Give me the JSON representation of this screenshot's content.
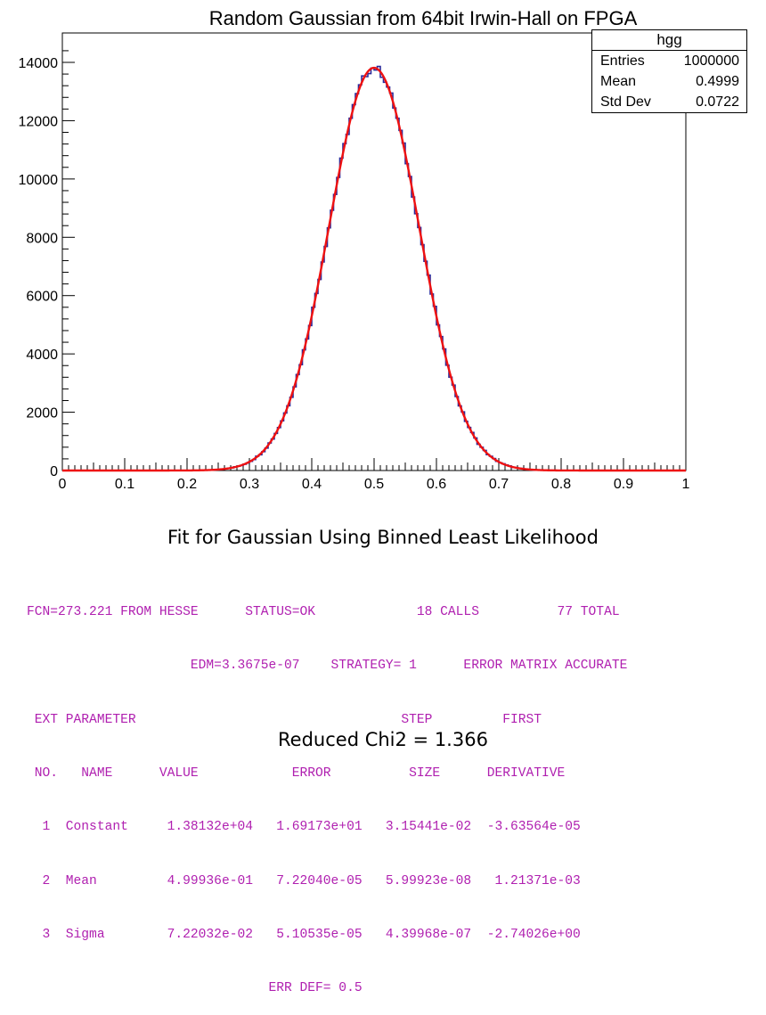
{
  "chart_data": {
    "type": "histogram",
    "title": "Random Gaussian from 64bit Irwin-Hall on FPGA",
    "xlabel": "",
    "ylabel": "",
    "xlim": [
      0,
      1
    ],
    "ylim": [
      0,
      14500
    ],
    "x_ticks": [
      "0",
      "0.1",
      "0.2",
      "0.3",
      "0.4",
      "0.5",
      "0.6",
      "0.7",
      "0.8",
      "0.9",
      "1"
    ],
    "y_ticks": [
      "0",
      "2000",
      "4000",
      "6000",
      "8000",
      "10000",
      "12000",
      "14000"
    ],
    "grid": false,
    "series": [
      {
        "kind": "histogram",
        "color": "#2a2a9a",
        "bins": 200,
        "gaussian": {
          "constant": 13813.2,
          "mean": 0.499936,
          "sigma": 0.0722032
        }
      },
      {
        "kind": "fit-curve",
        "color": "#ee1111",
        "gaussian": {
          "constant": 13813.2,
          "mean": 0.499936,
          "sigma": 0.0722032
        }
      }
    ]
  },
  "stats": {
    "name": "hgg",
    "rows": [
      {
        "label": "Entries",
        "value": "1000000"
      },
      {
        "label": "Mean",
        "value": "0.4999"
      },
      {
        "label": "Std Dev",
        "value": "0.0722"
      }
    ]
  },
  "fit_caption": "Fit for Gaussian Using Binned Least Likelihood",
  "fit_output": [
    "FCN=273.221 FROM HESSE      STATUS=OK             18 CALLS          77 TOTAL",
    "                     EDM=3.3675e-07    STRATEGY= 1      ERROR MATRIX ACCURATE",
    " EXT PARAMETER                                  STEP         FIRST",
    " NO.   NAME      VALUE            ERROR          SIZE      DERIVATIVE",
    "  1  Constant     1.38132e+04   1.69173e+01   3.15441e-02  -3.63564e-05",
    "  2  Mean         4.99936e-01   7.22040e-05   5.99923e-08   1.21371e-03",
    "  3  Sigma        7.22032e-02   5.10535e-05   4.39968e-07  -2.74026e+00",
    "                               ERR DEF= 0.5"
  ],
  "reduced_chi2": "Reduced Chi2 = 1.366"
}
